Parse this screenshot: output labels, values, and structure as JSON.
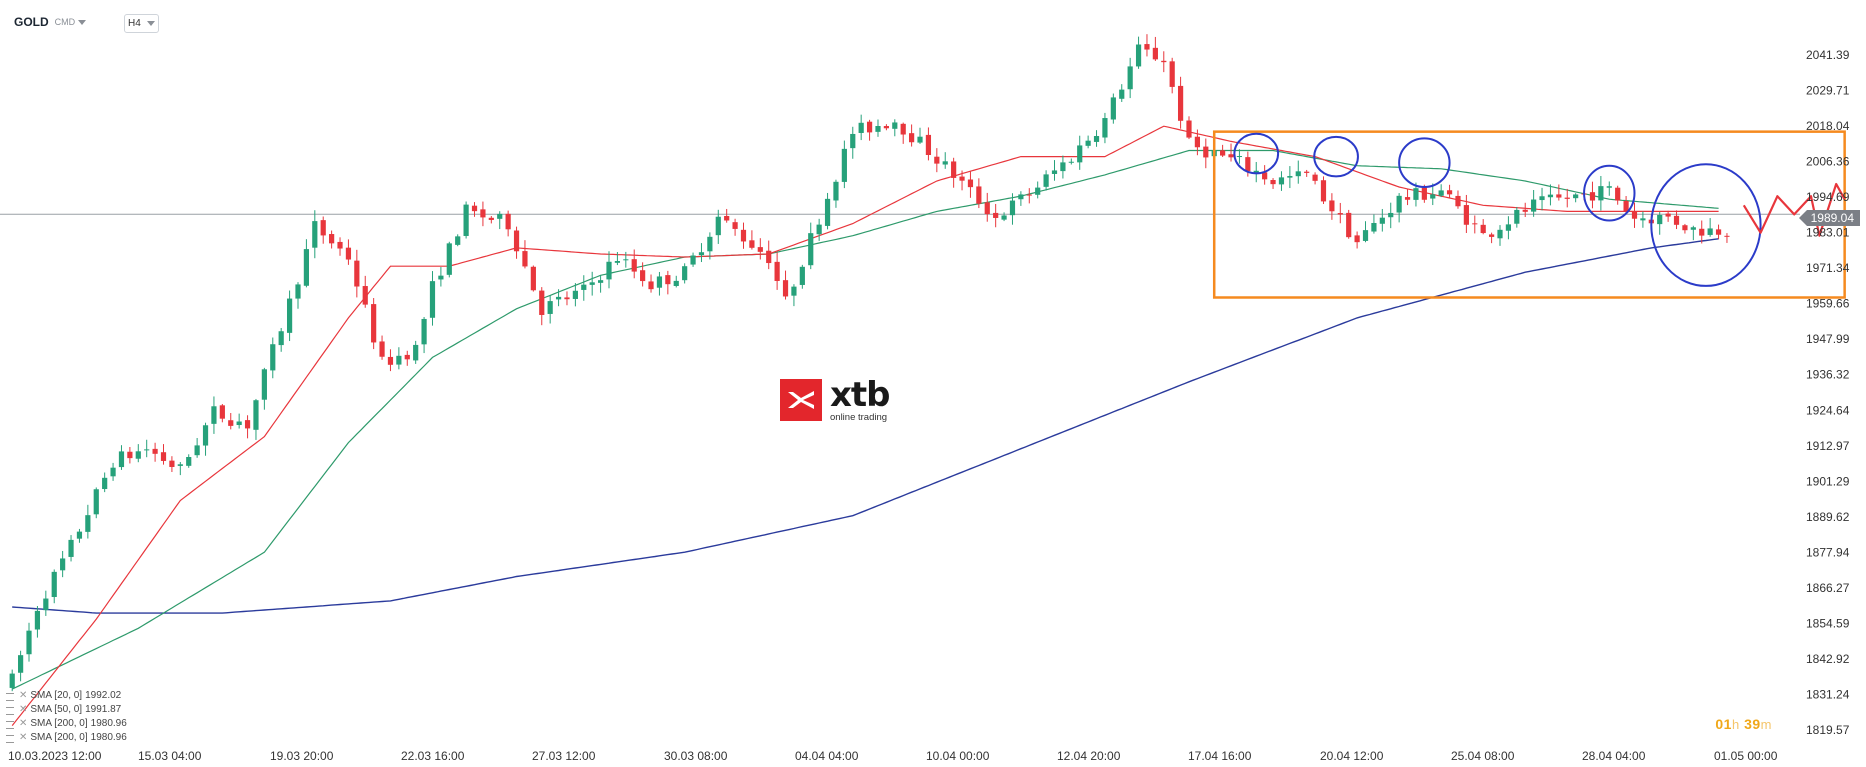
{
  "toolbar": {
    "symbol": "GOLD",
    "market": "CMD",
    "timeframe": "H4"
  },
  "price_label": "1989.04",
  "timer": {
    "h": "01",
    "h_unit": "h",
    "m": "39",
    "m_unit": "m"
  },
  "logo": {
    "name": "xtb",
    "tagline": "online trading"
  },
  "legend": [
    {
      "label": "SMA [20, 0]",
      "value": "1992.02",
      "color": "#e8363c"
    },
    {
      "label": "SMA [50, 0]",
      "value": "1991.87",
      "color": "#2e9a6b"
    },
    {
      "label": "SMA [200, 0]",
      "value": "1980.96",
      "color": "#2b3b9c"
    },
    {
      "label": "SMA [200, 0]",
      "value": "1980.96",
      "color": "#2b3b9c"
    }
  ],
  "colors": {
    "up": "#26a17a",
    "down": "#e8363c",
    "sma20": "#e8363c",
    "sma50": "#2e9a6b",
    "sma200": "#2b3b9c",
    "range_box": "#f58a1f",
    "circles": "#2b3bc9",
    "projection": "#e8363c",
    "price_line": "#9aa0a6"
  },
  "chart_data": {
    "type": "candlestick",
    "y_axis_ticks": [
      "2041.39",
      "2029.71",
      "2018.04",
      "2006.36",
      "1994.69",
      "1983.01",
      "1971.34",
      "1959.66",
      "1947.99",
      "1936.32",
      "1924.64",
      "1912.97",
      "1901.29",
      "1889.62",
      "1877.94",
      "1866.27",
      "1854.59",
      "1842.92",
      "1831.24",
      "1819.57"
    ],
    "x_axis_ticks": [
      "10.03.2023   12:00",
      "15.03  04:00",
      "19.03  20:00",
      "22.03  16:00",
      "27.03  12:00",
      "30.03  08:00",
      "04.04  04:00",
      "10.04  00:00",
      "12.04  20:00",
      "17.04  16:00",
      "20.04  12:00",
      "25.04  08:00",
      "28.04  04:00",
      "01.05  00:00"
    ],
    "ylim": [
      1819.57,
      2041.39
    ],
    "current_price": 1989.04,
    "candle_count": 212,
    "anchors": [
      [
        0,
        1836
      ],
      [
        3,
        1860
      ],
      [
        7,
        1880
      ],
      [
        12,
        1908
      ],
      [
        16,
        1912
      ],
      [
        20,
        1905
      ],
      [
        24,
        1924
      ],
      [
        28,
        1920
      ],
      [
        33,
        1960
      ],
      [
        36,
        1985
      ],
      [
        40,
        1975
      ],
      [
        44,
        1940
      ],
      [
        48,
        1945
      ],
      [
        50,
        1965
      ],
      [
        54,
        1990
      ],
      [
        59,
        1986
      ],
      [
        63,
        1958
      ],
      [
        68,
        1964
      ],
      [
        72,
        1975
      ],
      [
        76,
        1966
      ],
      [
        80,
        1970
      ],
      [
        84,
        1988
      ],
      [
        90,
        1975
      ],
      [
        92,
        1960
      ],
      [
        96,
        1988
      ],
      [
        100,
        2016
      ],
      [
        105,
        2020
      ],
      [
        109,
        2010
      ],
      [
        112,
        2002
      ],
      [
        117,
        1988
      ],
      [
        121,
        1996
      ],
      [
        126,
        2008
      ],
      [
        130,
        2020
      ],
      [
        134,
        2043
      ],
      [
        137,
        2040
      ],
      [
        140,
        2012
      ],
      [
        146,
        2006
      ],
      [
        150,
        2000
      ],
      [
        154,
        2002
      ],
      [
        160,
        1980
      ],
      [
        165,
        1994
      ],
      [
        170,
        1997
      ],
      [
        175,
        1982
      ],
      [
        181,
        1992
      ],
      [
        186,
        1995
      ],
      [
        190,
        1997
      ],
      [
        193,
        1988
      ],
      [
        197,
        1988
      ],
      [
        200,
        1984
      ],
      [
        204,
        1984
      ]
    ],
    "sma20": [
      [
        0,
        1821
      ],
      [
        10,
        1856
      ],
      [
        20,
        1895
      ],
      [
        30,
        1916
      ],
      [
        40,
        1955
      ],
      [
        45,
        1972
      ],
      [
        52,
        1972
      ],
      [
        60,
        1978
      ],
      [
        70,
        1976
      ],
      [
        80,
        1975
      ],
      [
        90,
        1976
      ],
      [
        100,
        1986
      ],
      [
        110,
        2000
      ],
      [
        120,
        2008
      ],
      [
        130,
        2008
      ],
      [
        137,
        2018
      ],
      [
        145,
        2013
      ],
      [
        155,
        2008
      ],
      [
        165,
        1998
      ],
      [
        175,
        1992
      ],
      [
        185,
        1990
      ],
      [
        195,
        1990
      ],
      [
        203,
        1990
      ]
    ],
    "sma50": [
      [
        0,
        1833
      ],
      [
        15,
        1853
      ],
      [
        30,
        1878
      ],
      [
        40,
        1914
      ],
      [
        50,
        1942
      ],
      [
        60,
        1958
      ],
      [
        70,
        1969
      ],
      [
        80,
        1975
      ],
      [
        90,
        1976
      ],
      [
        100,
        1982
      ],
      [
        110,
        1990
      ],
      [
        120,
        1995
      ],
      [
        130,
        2002
      ],
      [
        140,
        2010
      ],
      [
        150,
        2010
      ],
      [
        160,
        2005
      ],
      [
        170,
        2004
      ],
      [
        180,
        2000
      ],
      [
        190,
        1994
      ],
      [
        203,
        1991
      ]
    ],
    "sma200": [
      [
        0,
        1860
      ],
      [
        10,
        1858
      ],
      [
        25,
        1858
      ],
      [
        45,
        1862
      ],
      [
        60,
        1870
      ],
      [
        80,
        1878
      ],
      [
        100,
        1890
      ],
      [
        120,
        1912
      ],
      [
        140,
        1934
      ],
      [
        160,
        1955
      ],
      [
        180,
        1970
      ],
      [
        195,
        1978
      ],
      [
        203,
        1981
      ]
    ],
    "range_box": {
      "x_from": 143,
      "x_to": 218,
      "y_from": 1961.7,
      "y_to": 2016.2
    },
    "circles": [
      {
        "x": 148,
        "y": 2009,
        "rx": 2.6,
        "ry": 6.5
      },
      {
        "x": 157.5,
        "y": 2008,
        "rx": 2.6,
        "ry": 6.5
      },
      {
        "x": 168,
        "y": 2006,
        "rx": 3,
        "ry": 8
      },
      {
        "x": 190,
        "y": 1996,
        "rx": 3,
        "ry": 9
      },
      {
        "x": 201.5,
        "y": 1985.5,
        "rx": 6.5,
        "ry": 20
      }
    ],
    "projection": [
      [
        206,
        1992
      ],
      [
        208,
        1983
      ],
      [
        210,
        1995
      ],
      [
        212,
        1989
      ],
      [
        214,
        1995
      ],
      [
        215,
        1982
      ],
      [
        217,
        1999
      ],
      [
        218,
        1994
      ]
    ]
  }
}
